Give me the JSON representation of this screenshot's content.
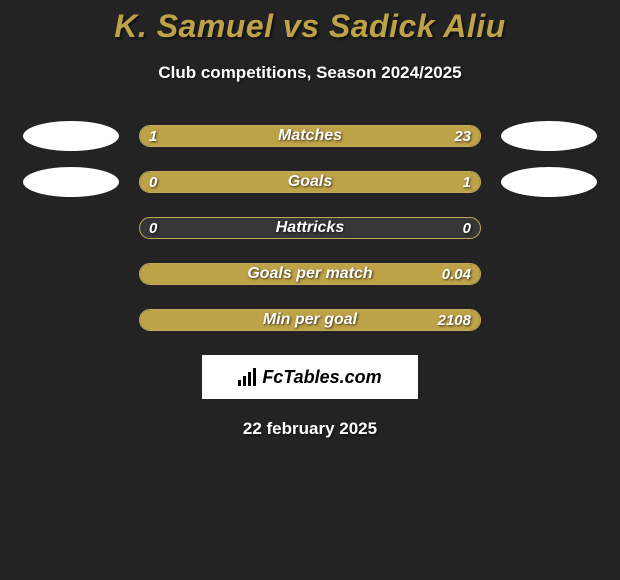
{
  "title": "K. Samuel vs Sadick Aliu",
  "subtitle": "Club competitions, Season 2024/2025",
  "date": "22 february 2025",
  "logo_text": "FcTables.com",
  "colors": {
    "background": "#232323",
    "accent": "#bea248",
    "bar_bg": "#363636",
    "bar_border": "#c2aa5a",
    "text": "#ffffff",
    "oval": "#ffffff"
  },
  "stats": [
    {
      "label": "Matches",
      "left_value": "1",
      "right_value": "23",
      "left_num": 1,
      "right_num": 23,
      "left_pct": 18,
      "right_pct": 82,
      "show_left_oval": true,
      "show_right_oval": true
    },
    {
      "label": "Goals",
      "left_value": "0",
      "right_value": "1",
      "left_num": 0,
      "right_num": 1,
      "left_pct": 0,
      "right_pct": 100,
      "show_left_oval": true,
      "show_right_oval": true
    },
    {
      "label": "Hattricks",
      "left_value": "0",
      "right_value": "0",
      "left_num": 0,
      "right_num": 0,
      "left_pct": 0,
      "right_pct": 0,
      "show_left_oval": false,
      "show_right_oval": false
    },
    {
      "label": "Goals per match",
      "left_value": "",
      "right_value": "0.04",
      "left_num": 0,
      "right_num": 0.04,
      "left_pct": 0,
      "right_pct": 100,
      "show_left_oval": false,
      "show_right_oval": false
    },
    {
      "label": "Min per goal",
      "left_value": "",
      "right_value": "2108",
      "left_num": 0,
      "right_num": 2108,
      "left_pct": 0,
      "right_pct": 100,
      "show_left_oval": false,
      "show_right_oval": false
    }
  ]
}
